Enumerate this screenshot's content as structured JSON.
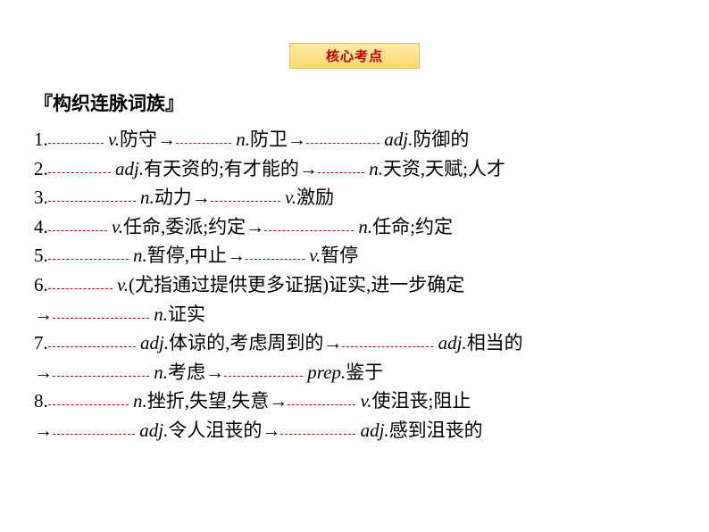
{
  "badge": "核心考点",
  "title": "『构织连脉词族』",
  "colors": {
    "accent": "#c00000",
    "badge_bg_top": "#ffe9a8",
    "badge_bg_bottom": "#ffd970",
    "badge_border": "#e6c05a",
    "text": "#000000",
    "background": "#ffffff"
  },
  "items": [
    {
      "num": "1.",
      "parts": [
        {
          "blank_w": 62
        },
        {
          "text": " "
        },
        {
          "italic": "v."
        },
        {
          "text": "防守→"
        },
        {
          "blank_w": 62
        },
        {
          "text": " "
        },
        {
          "italic": "n."
        },
        {
          "text": "防卫→"
        },
        {
          "blank_w": 82
        },
        {
          "text": " "
        },
        {
          "italic": "adj."
        },
        {
          "text": "防御的"
        }
      ]
    },
    {
      "num": "2.",
      "parts": [
        {
          "blank_w": 70
        },
        {
          "text": " "
        },
        {
          "italic": "adj."
        },
        {
          "text": "有天资的;有才能的→"
        },
        {
          "blank_w": 52
        },
        {
          "text": " "
        },
        {
          "italic": "n."
        },
        {
          "text": "天资,天赋;人才"
        }
      ]
    },
    {
      "num": "3.",
      "parts": [
        {
          "blank_w": 98
        },
        {
          "text": " "
        },
        {
          "italic": "n."
        },
        {
          "text": "动力→"
        },
        {
          "blank_w": 78
        },
        {
          "text": " "
        },
        {
          "italic": "v."
        },
        {
          "text": "激励"
        }
      ]
    },
    {
      "num": "4.",
      "parts": [
        {
          "blank_w": 66
        },
        {
          "text": " "
        },
        {
          "italic": "v."
        },
        {
          "text": "任命,委派;约定→"
        },
        {
          "blank_w": 100
        },
        {
          "text": " "
        },
        {
          "italic": "n."
        },
        {
          "text": "任命;约定"
        }
      ]
    },
    {
      "num": "5.",
      "parts": [
        {
          "blank_w": 90
        },
        {
          "text": " "
        },
        {
          "italic": "n."
        },
        {
          "text": "暂停,中止→"
        },
        {
          "blank_w": 66
        },
        {
          "text": " "
        },
        {
          "italic": "v."
        },
        {
          "text": "暂停"
        }
      ]
    },
    {
      "num": "6.",
      "parts": [
        {
          "blank_w": 72
        },
        {
          "text": " "
        },
        {
          "italic": "v."
        },
        {
          "text": "(尤指通过提供更多证据)证实,进一步确定"
        }
      ]
    },
    {
      "cont": true,
      "parts": [
        {
          "text": "→"
        },
        {
          "blank_w": 108
        },
        {
          "text": " "
        },
        {
          "italic": "n."
        },
        {
          "text": "证实"
        }
      ]
    },
    {
      "num": "7.",
      "parts": [
        {
          "blank_w": 98
        },
        {
          "text": " "
        },
        {
          "italic": "adj."
        },
        {
          "text": "体谅的,考虑周到的→"
        },
        {
          "blank_w": 102
        },
        {
          "text": " "
        },
        {
          "italic": "adj."
        },
        {
          "text": "相当的"
        }
      ]
    },
    {
      "cont": true,
      "parts": [
        {
          "text": "→"
        },
        {
          "blank_w": 108
        },
        {
          "text": " "
        },
        {
          "italic": "n."
        },
        {
          "text": "考虑→"
        },
        {
          "blank_w": 88
        },
        {
          "text": " "
        },
        {
          "italic": "prep."
        },
        {
          "text": "鉴于"
        }
      ]
    },
    {
      "num": "8.",
      "parts": [
        {
          "blank_w": 90
        },
        {
          "text": " "
        },
        {
          "italic": "n."
        },
        {
          "text": "挫折,失望,失意→"
        },
        {
          "blank_w": 76
        },
        {
          "text": " "
        },
        {
          "italic": "v."
        },
        {
          "text": "使沮丧;阻止"
        }
      ]
    },
    {
      "cont": true,
      "parts": [
        {
          "text": "→"
        },
        {
          "blank_w": 92
        },
        {
          "text": " "
        },
        {
          "italic": "adj."
        },
        {
          "text": "令人沮丧的→"
        },
        {
          "blank_w": 84
        },
        {
          "text": " "
        },
        {
          "italic": "adj."
        },
        {
          "text": "感到沮丧的"
        }
      ]
    }
  ]
}
